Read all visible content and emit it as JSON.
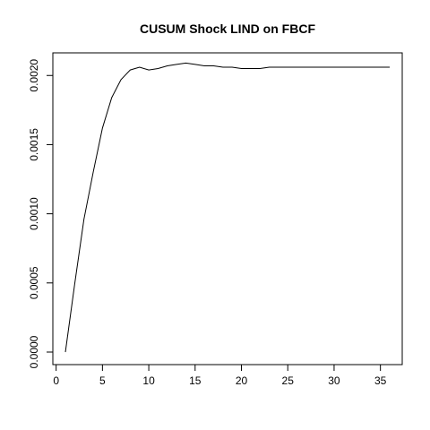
{
  "chart_data": {
    "type": "line",
    "title": "CUSUM Shock LIND on FBCF",
    "xlabel": "",
    "ylabel": "",
    "xlim": [
      1,
      36
    ],
    "ylim": [
      0,
      0.00206
    ],
    "x_ticks": [
      0,
      5,
      10,
      15,
      20,
      25,
      30,
      35
    ],
    "x_tick_labels": [
      "0",
      "5",
      "10",
      "15",
      "20",
      "25",
      "30",
      "35"
    ],
    "y_ticks": [
      0,
      0.0005,
      0.001,
      0.0015,
      0.002
    ],
    "y_tick_labels": [
      "0.0000",
      "0.0005",
      "0.0010",
      "0.0015",
      "0.0020"
    ],
    "grid": false,
    "legend": "none",
    "line_color": "#000000",
    "series": [
      {
        "x": [
          1,
          2,
          3,
          4,
          5,
          6,
          7,
          8,
          9,
          10,
          11,
          12,
          13,
          14,
          15,
          16,
          17,
          18,
          19,
          20,
          21,
          22,
          23,
          24,
          25,
          26,
          27,
          28,
          29,
          30,
          31,
          32,
          33,
          34,
          35,
          36
        ],
        "y": [
          0.0,
          0.00049,
          0.00096,
          0.0013,
          0.00162,
          0.00184,
          0.00197,
          0.00204,
          0.00206,
          0.00204,
          0.00205,
          0.00207,
          0.00208,
          0.00209,
          0.00208,
          0.00207,
          0.00207,
          0.00206,
          0.00206,
          0.00205,
          0.00205,
          0.00205,
          0.00206,
          0.00206,
          0.00206,
          0.00206,
          0.00206,
          0.00206,
          0.00206,
          0.00206,
          0.00206,
          0.00206,
          0.00206,
          0.00206,
          0.00206,
          0.00206
        ]
      }
    ]
  }
}
